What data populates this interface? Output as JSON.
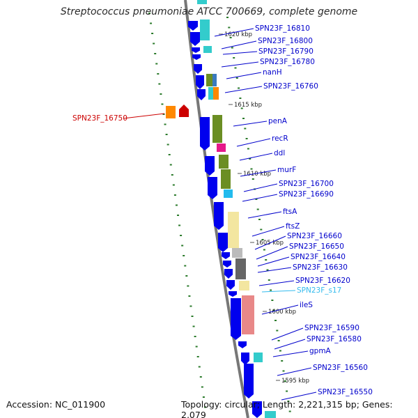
{
  "title": "Streptococcus pneumoniae ATCC 700669, complete genome",
  "footer": {
    "accession": "Accession: NC_011900",
    "summary": "Topology: circular; Length: 2,221,315 bp; Genes: 2,079"
  },
  "colors": {
    "cds": "#0000ee",
    "cyan": "#33cccc",
    "olive": "#6b8e23",
    "magenta": "#e6198a",
    "yellow": "#f3e6a0",
    "grey": "#bbbbbb",
    "darkgrey": "#666666",
    "salmon": "#e88888",
    "selected": "#cc0000",
    "orange": "#ff8800",
    "highlight_label": "#33bbee",
    "tick": "#2a7a2a"
  },
  "kbp_markers": [
    "1620 kbp",
    "1615 kbp",
    "1610 kbp",
    "1605 kbp",
    "1600 kbp",
    "1595 kbp"
  ],
  "genes": [
    {
      "label": "SPN23F_16810",
      "color": "#0000cc"
    },
    {
      "label": "SPN23F_16800",
      "color": "#0000cc"
    },
    {
      "label": "SPN23F_16790",
      "color": "#0000cc"
    },
    {
      "label": "SPN23F_16780",
      "color": "#0000cc"
    },
    {
      "label": "nanH",
      "color": "#0000cc"
    },
    {
      "label": "SPN23F_16760",
      "color": "#0000cc"
    },
    {
      "label": "penA",
      "color": "#0000cc"
    },
    {
      "label": "recR",
      "color": "#0000cc"
    },
    {
      "label": "ddl",
      "color": "#0000cc"
    },
    {
      "label": "murF",
      "color": "#0000cc"
    },
    {
      "label": "SPN23F_16700",
      "color": "#0000cc"
    },
    {
      "label": "SPN23F_16690",
      "color": "#0000cc"
    },
    {
      "label": "ftsA",
      "color": "#0000cc"
    },
    {
      "label": "ftsZ",
      "color": "#0000cc"
    },
    {
      "label": "SPN23F_16660",
      "color": "#0000cc"
    },
    {
      "label": "SPN23F_16650",
      "color": "#0000cc"
    },
    {
      "label": "SPN23F_16640",
      "color": "#0000cc"
    },
    {
      "label": "SPN23F_16630",
      "color": "#0000cc"
    },
    {
      "label": "SPN23F_16620",
      "color": "#0000cc"
    },
    {
      "label": "SPN23F_s17",
      "color": "#33bbee"
    },
    {
      "label": "ileS",
      "color": "#0000cc"
    },
    {
      "label": "SPN23F_16590",
      "color": "#0000cc"
    },
    {
      "label": "SPN23F_16580",
      "color": "#0000cc"
    },
    {
      "label": "gpmA",
      "color": "#0000cc"
    },
    {
      "label": "SPN23F_16560",
      "color": "#0000cc"
    },
    {
      "label": "SPN23F_16550",
      "color": "#0000cc"
    }
  ],
  "selected_gene": {
    "label": "SPN23F_16750",
    "color": "#cc0000"
  }
}
